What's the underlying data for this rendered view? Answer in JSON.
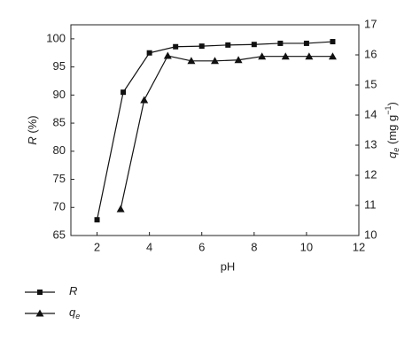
{
  "chart_data": {
    "type": "line",
    "x_label": "pH",
    "y_label": {
      "var": "R",
      "unit": "(%)"
    },
    "y2_label": {
      "var": "q",
      "sub": "e",
      "unit": "(mg g",
      "sup": "−1",
      "close": ")"
    },
    "xlim": [
      1,
      12
    ],
    "xticks": [
      2,
      4,
      6,
      8,
      10,
      12
    ],
    "ylim": [
      65,
      102.5
    ],
    "yticks": [
      65,
      70,
      75,
      80,
      85,
      90,
      95,
      100
    ],
    "y2lim": [
      10,
      17
    ],
    "y2ticks": [
      10,
      11,
      12,
      13,
      14,
      15,
      16,
      17
    ],
    "series": [
      {
        "name": "R",
        "marker": "square",
        "color": "#111",
        "x": [
          2,
          3,
          4,
          5,
          6,
          7,
          8,
          9,
          10,
          11
        ],
        "values": [
          67.8,
          90.5,
          97.5,
          98.6,
          98.7,
          98.9,
          99.0,
          99.2,
          99.2,
          99.5
        ]
      },
      {
        "name": "q",
        "name_sub": "e",
        "marker": "triangle",
        "color": "#111",
        "axis": "y2",
        "x": [
          2.9,
          3.8,
          4.7,
          5.6,
          6.5,
          7.4,
          8.3,
          9.2,
          10.1,
          11
        ],
        "values": [
          10.88,
          14.5,
          15.97,
          15.8,
          15.8,
          15.83,
          15.95,
          15.95,
          15.95,
          15.95
        ]
      }
    ]
  }
}
